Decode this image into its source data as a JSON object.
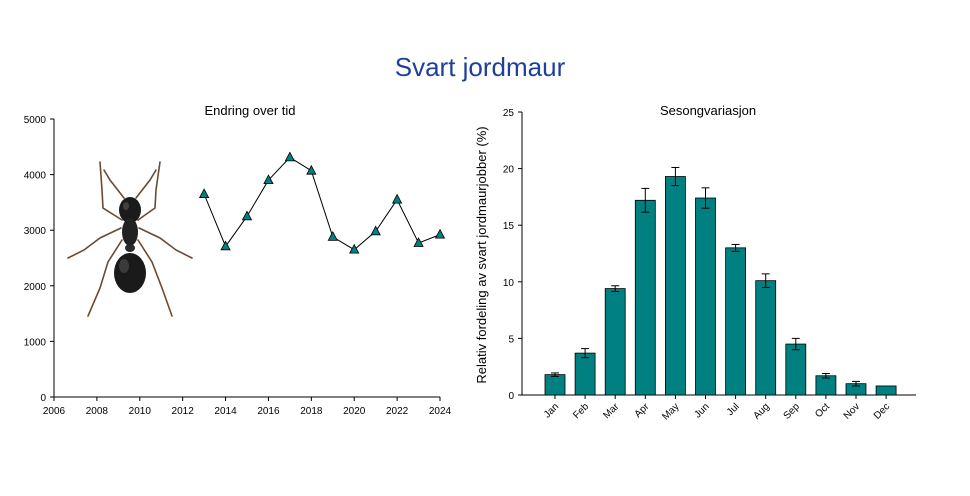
{
  "title": "Svart jordmaur",
  "colors": {
    "title": "#1f3f9a",
    "series": "#008080",
    "line": "#000000"
  },
  "image": {
    "icon": "ant-icon",
    "alt": "black ant"
  },
  "chart_data": [
    {
      "type": "line",
      "title": "Endring over tid",
      "xlabel": "",
      "ylabel": "",
      "xlim": [
        2006,
        2024
      ],
      "ylim": [
        0,
        5000
      ],
      "xticks": [
        2006,
        2008,
        2010,
        2012,
        2014,
        2016,
        2018,
        2020,
        2022,
        2024
      ],
      "yticks": [
        0,
        1000,
        2000,
        3000,
        4000,
        5000
      ],
      "marker": "triangle",
      "grid": false,
      "x": [
        2013,
        2014,
        2015,
        2016,
        2017,
        2018,
        2019,
        2020,
        2021,
        2022,
        2023,
        2024
      ],
      "y": [
        3650,
        2710,
        3250,
        3900,
        4310,
        4070,
        2880,
        2650,
        2980,
        3550,
        2770,
        2920
      ]
    },
    {
      "type": "bar",
      "title": "Sesongvariasjon",
      "xlabel": "",
      "ylabel": "Relativ fordeling av svart jordmaurjobber (%)",
      "ylim": [
        0,
        25
      ],
      "yticks": [
        0,
        5,
        10,
        15,
        20,
        25
      ],
      "grid": false,
      "categories": [
        "Jan",
        "Feb",
        "Mar",
        "Apr",
        "May",
        "Jun",
        "Jul",
        "Aug",
        "Sep",
        "Oct",
        "Nov",
        "Dec"
      ],
      "values": [
        1.8,
        3.7,
        9.4,
        17.2,
        19.3,
        17.4,
        13.0,
        10.1,
        4.5,
        1.7,
        1.0,
        0.8
      ],
      "errors": [
        0.15,
        0.4,
        0.25,
        1.05,
        0.8,
        0.9,
        0.3,
        0.6,
        0.5,
        0.2,
        0.2,
        0.0
      ]
    }
  ]
}
